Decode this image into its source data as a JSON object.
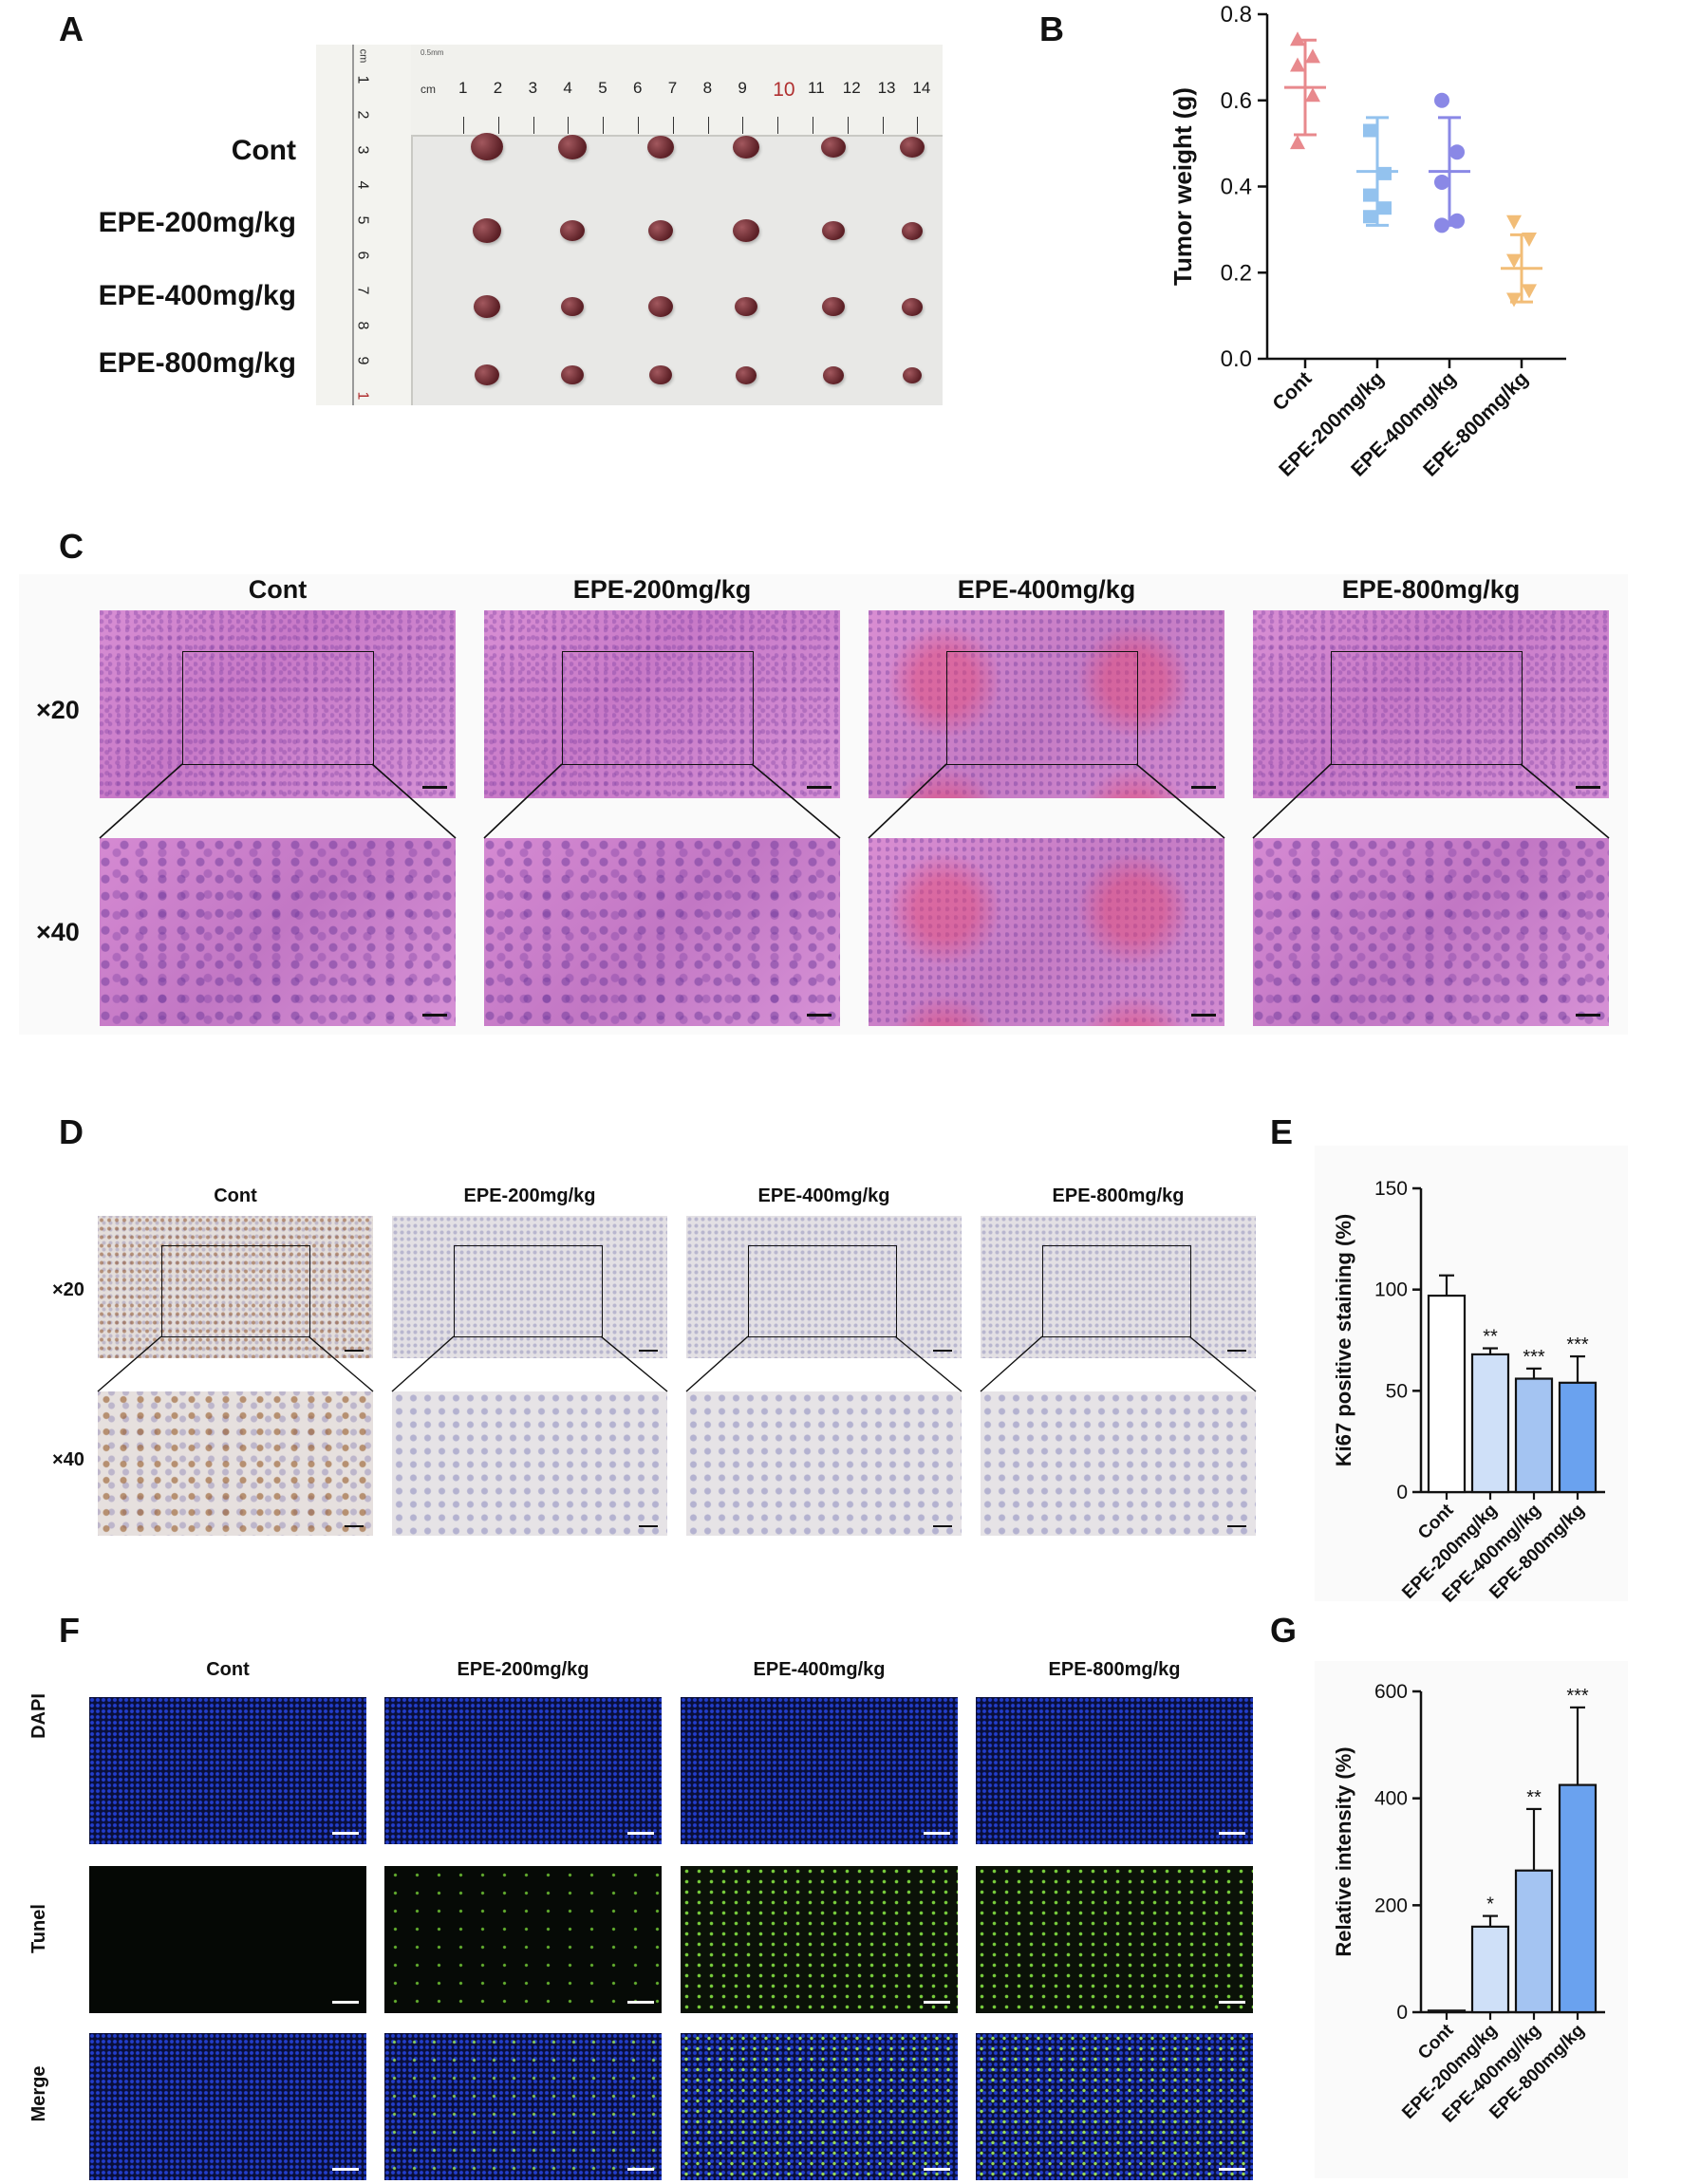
{
  "panels": {
    "A": {
      "letter": "A",
      "row_labels": [
        "Cont",
        "EPE-200mg/kg",
        "EPE-400mg/kg",
        "EPE-800mg/kg"
      ],
      "ruler_unit": "cm",
      "ruler_h_ticks": [
        "1",
        "2",
        "3",
        "4",
        "5",
        "6",
        "7",
        "8",
        "9",
        "10",
        "11",
        "12",
        "13",
        "14"
      ],
      "ruler_v_ticks": [
        "1",
        "2",
        "3",
        "4",
        "5",
        "6",
        "7",
        "8",
        "9",
        "1"
      ],
      "ruler_h_small": "0.5mm"
    },
    "B": {
      "letter": "B"
    },
    "C": {
      "letter": "C",
      "col_titles": [
        "Cont",
        "EPE-200mg/kg",
        "EPE-400mg/kg",
        "EPE-800mg/kg"
      ],
      "row_labels": [
        "×20",
        "×40"
      ]
    },
    "D": {
      "letter": "D",
      "col_titles": [
        "Cont",
        "EPE-200mg/kg",
        "EPE-400mg/kg",
        "EPE-800mg/kg"
      ],
      "row_labels": [
        "×20",
        "×40"
      ]
    },
    "E": {
      "letter": "E"
    },
    "F": {
      "letter": "F",
      "col_titles": [
        "Cont",
        "EPE-200mg/kg",
        "EPE-400mg/kg",
        "EPE-800mg/kg"
      ],
      "row_labels": [
        "DAPI",
        "Tunel",
        "Merge"
      ]
    },
    "G": {
      "letter": "G"
    }
  },
  "chart_data": [
    {
      "id": "B",
      "type": "scatter",
      "ylabel": "Tumor weight (g)",
      "ylim": [
        0,
        0.8
      ],
      "yticks": [
        "0.0",
        "0.2",
        "0.4",
        "0.6",
        "0.8"
      ],
      "categories": [
        "Cont",
        "EPE-200mg/kg",
        "EPE-400mg/kg",
        "EPE-800mg/kg"
      ],
      "colors": [
        "#e8898d",
        "#93c2ee",
        "#8a88e6",
        "#f2bd77"
      ],
      "markers": [
        "triangle",
        "square",
        "circle",
        "triangle-down"
      ],
      "points": [
        [
          0.74,
          0.7,
          0.68,
          0.61,
          0.5
        ],
        [
          0.53,
          0.43,
          0.38,
          0.35,
          0.33
        ],
        [
          0.6,
          0.48,
          0.41,
          0.32,
          0.31
        ],
        [
          0.32,
          0.28,
          0.23,
          0.16,
          0.14
        ]
      ],
      "means": [
        0.63,
        0.435,
        0.435,
        0.21
      ],
      "sd": [
        0.11,
        0.125,
        0.125,
        0.078
      ]
    },
    {
      "id": "E",
      "type": "bar",
      "ylabel": "Ki67 positive staining (%)",
      "ylim": [
        0,
        150
      ],
      "yticks": [
        "0",
        "50",
        "100",
        "150"
      ],
      "categories": [
        "Cont",
        "EPE-200mg/kg",
        "EPE-400mg//kg",
        "EPE-800mg/kg"
      ],
      "values": [
        97,
        68,
        56,
        54
      ],
      "errors": [
        10,
        3,
        5,
        13
      ],
      "significance": [
        "",
        "**",
        "***",
        "***"
      ],
      "colors": [
        "#ffffff",
        "#cfe0f8",
        "#a4c4f2",
        "#6aa2ef"
      ]
    },
    {
      "id": "G",
      "type": "bar",
      "ylabel": "Relative intensity (%)",
      "ylim": [
        0,
        600
      ],
      "yticks": [
        "0",
        "200",
        "400",
        "600"
      ],
      "categories": [
        "Cont",
        "EPE-200mg/kg",
        "EPE-400mg//kg",
        "EPE-800mg/kg"
      ],
      "values": [
        3,
        160,
        265,
        425
      ],
      "errors": [
        0,
        20,
        115,
        145
      ],
      "significance": [
        "",
        "*",
        "**",
        "***"
      ],
      "colors": [
        "#ffffff",
        "#cfe0f8",
        "#a4c4f2",
        "#6aa2ef"
      ]
    }
  ]
}
